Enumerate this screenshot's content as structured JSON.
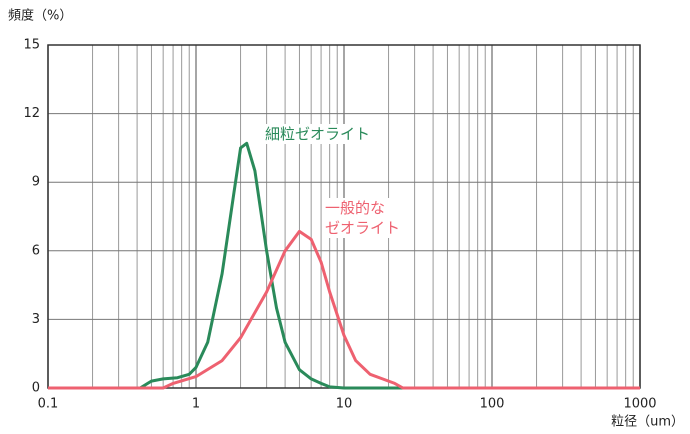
{
  "chart_data": {
    "type": "line",
    "ylabel": "頻度（%）",
    "xlabel": "粒径（um）",
    "xscale": "log",
    "grid": true,
    "xlim": [
      0.1,
      1000
    ],
    "xticks": [
      0.1,
      1,
      10,
      100,
      1000
    ],
    "ylim": [
      0,
      15
    ],
    "yticks": [
      0,
      3,
      6,
      9,
      12,
      15
    ],
    "series": [
      {
        "name": "細粒ゼオライト",
        "color": "#2a8a5a",
        "x": [
          0.1,
          0.42,
          0.5,
          0.6,
          0.75,
          0.9,
          1.0,
          1.2,
          1.5,
          1.8,
          2.0,
          2.2,
          2.5,
          3.0,
          3.5,
          4.0,
          5.0,
          6.0,
          7.0,
          8.0,
          10,
          100,
          1000
        ],
        "values": [
          0,
          0,
          0.3,
          0.4,
          0.45,
          0.6,
          0.9,
          2.0,
          5.0,
          8.5,
          10.5,
          10.7,
          9.5,
          6.0,
          3.5,
          2.0,
          0.8,
          0.4,
          0.2,
          0.05,
          0,
          0,
          0
        ]
      },
      {
        "name": "一般的な\nゼオライト",
        "color": "#ee6170",
        "x": [
          0.1,
          0.6,
          0.7,
          1.0,
          1.5,
          2.0,
          3.0,
          4.0,
          5.0,
          6.0,
          7.0,
          8.0,
          10,
          12,
          15,
          20,
          22,
          25,
          100,
          1000
        ],
        "values": [
          0,
          0,
          0.2,
          0.5,
          1.2,
          2.2,
          4.2,
          6.0,
          6.85,
          6.5,
          5.5,
          4.2,
          2.3,
          1.2,
          0.6,
          0.3,
          0.2,
          0,
          0,
          0
        ]
      }
    ]
  }
}
